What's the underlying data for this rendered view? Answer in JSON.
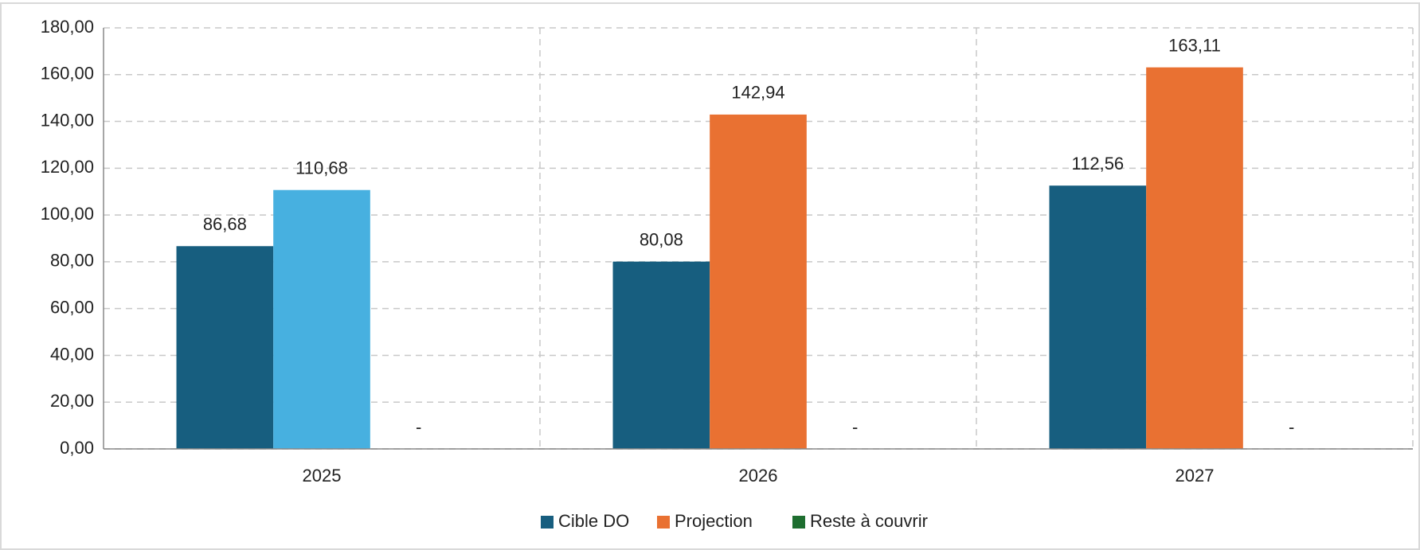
{
  "chart_data": {
    "type": "bar",
    "categories": [
      "2025",
      "2026",
      "2027"
    ],
    "series": [
      {
        "name": "Cible DO",
        "color": "#175e7f",
        "values": [
          86.68,
          80.08,
          112.56
        ],
        "value_labels": [
          "86,68",
          "80,08",
          "112,56"
        ]
      },
      {
        "name": "Projection",
        "color": "#e97132",
        "colors": [
          "#47b0e0",
          "#e97132",
          "#e97132"
        ],
        "values": [
          110.68,
          142.94,
          163.11
        ],
        "value_labels": [
          "110,68",
          "142,94",
          "163,11"
        ]
      },
      {
        "name": "Reste à couvrir",
        "color": "#1e6e30",
        "values": [
          0,
          0,
          0
        ],
        "value_labels": [
          "-",
          "-",
          "-"
        ]
      }
    ],
    "ylim": [
      0,
      180
    ],
    "yticks": [
      {
        "value": 0,
        "label": "0,00"
      },
      {
        "value": 20,
        "label": "20,00"
      },
      {
        "value": 40,
        "label": "40,00"
      },
      {
        "value": 60,
        "label": "60,00"
      },
      {
        "value": 80,
        "label": "80,00"
      },
      {
        "value": 100,
        "label": "100,00"
      },
      {
        "value": 120,
        "label": "120,00"
      },
      {
        "value": 140,
        "label": "140,00"
      },
      {
        "value": 160,
        "label": "160,00"
      },
      {
        "value": 180,
        "label": "180,00"
      }
    ],
    "grid": true,
    "legend": "bottom"
  }
}
